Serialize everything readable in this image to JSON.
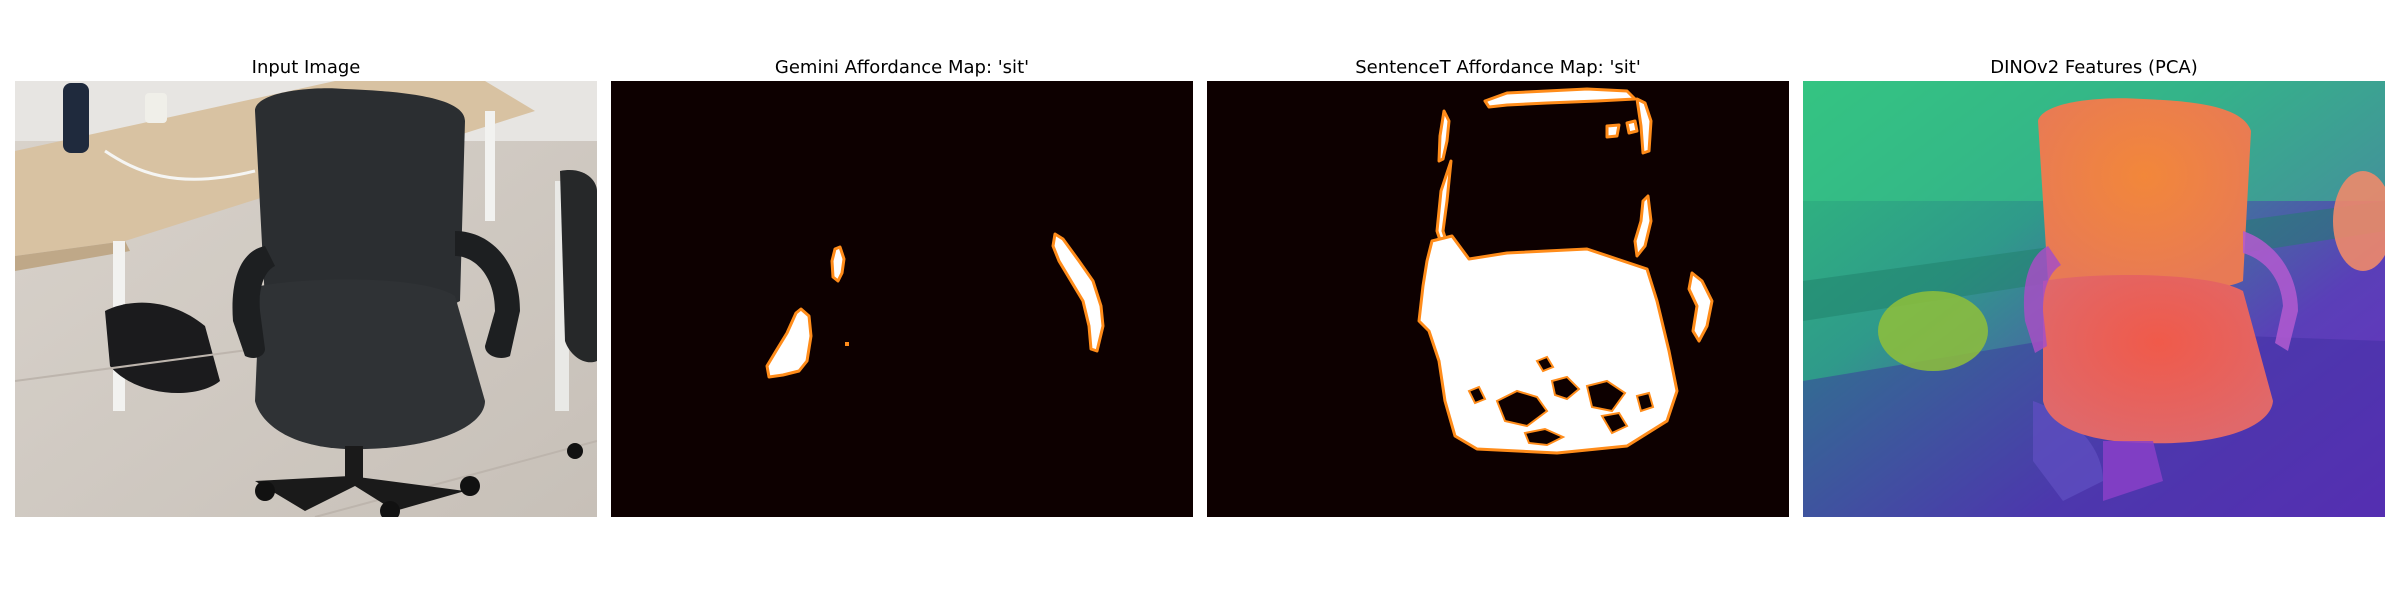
{
  "figure": {
    "panels": [
      {
        "title": "Input Image"
      },
      {
        "title": "Gemini Affordance Map: 'sit'"
      },
      {
        "title": "SentenceT Affordance Map: 'sit'"
      },
      {
        "title": "DINOv2 Features (PCA)"
      }
    ]
  },
  "colors": {
    "map_background": "#0d0000",
    "map_highlight": "#ffffff",
    "map_edge": "#ff8c1a"
  }
}
